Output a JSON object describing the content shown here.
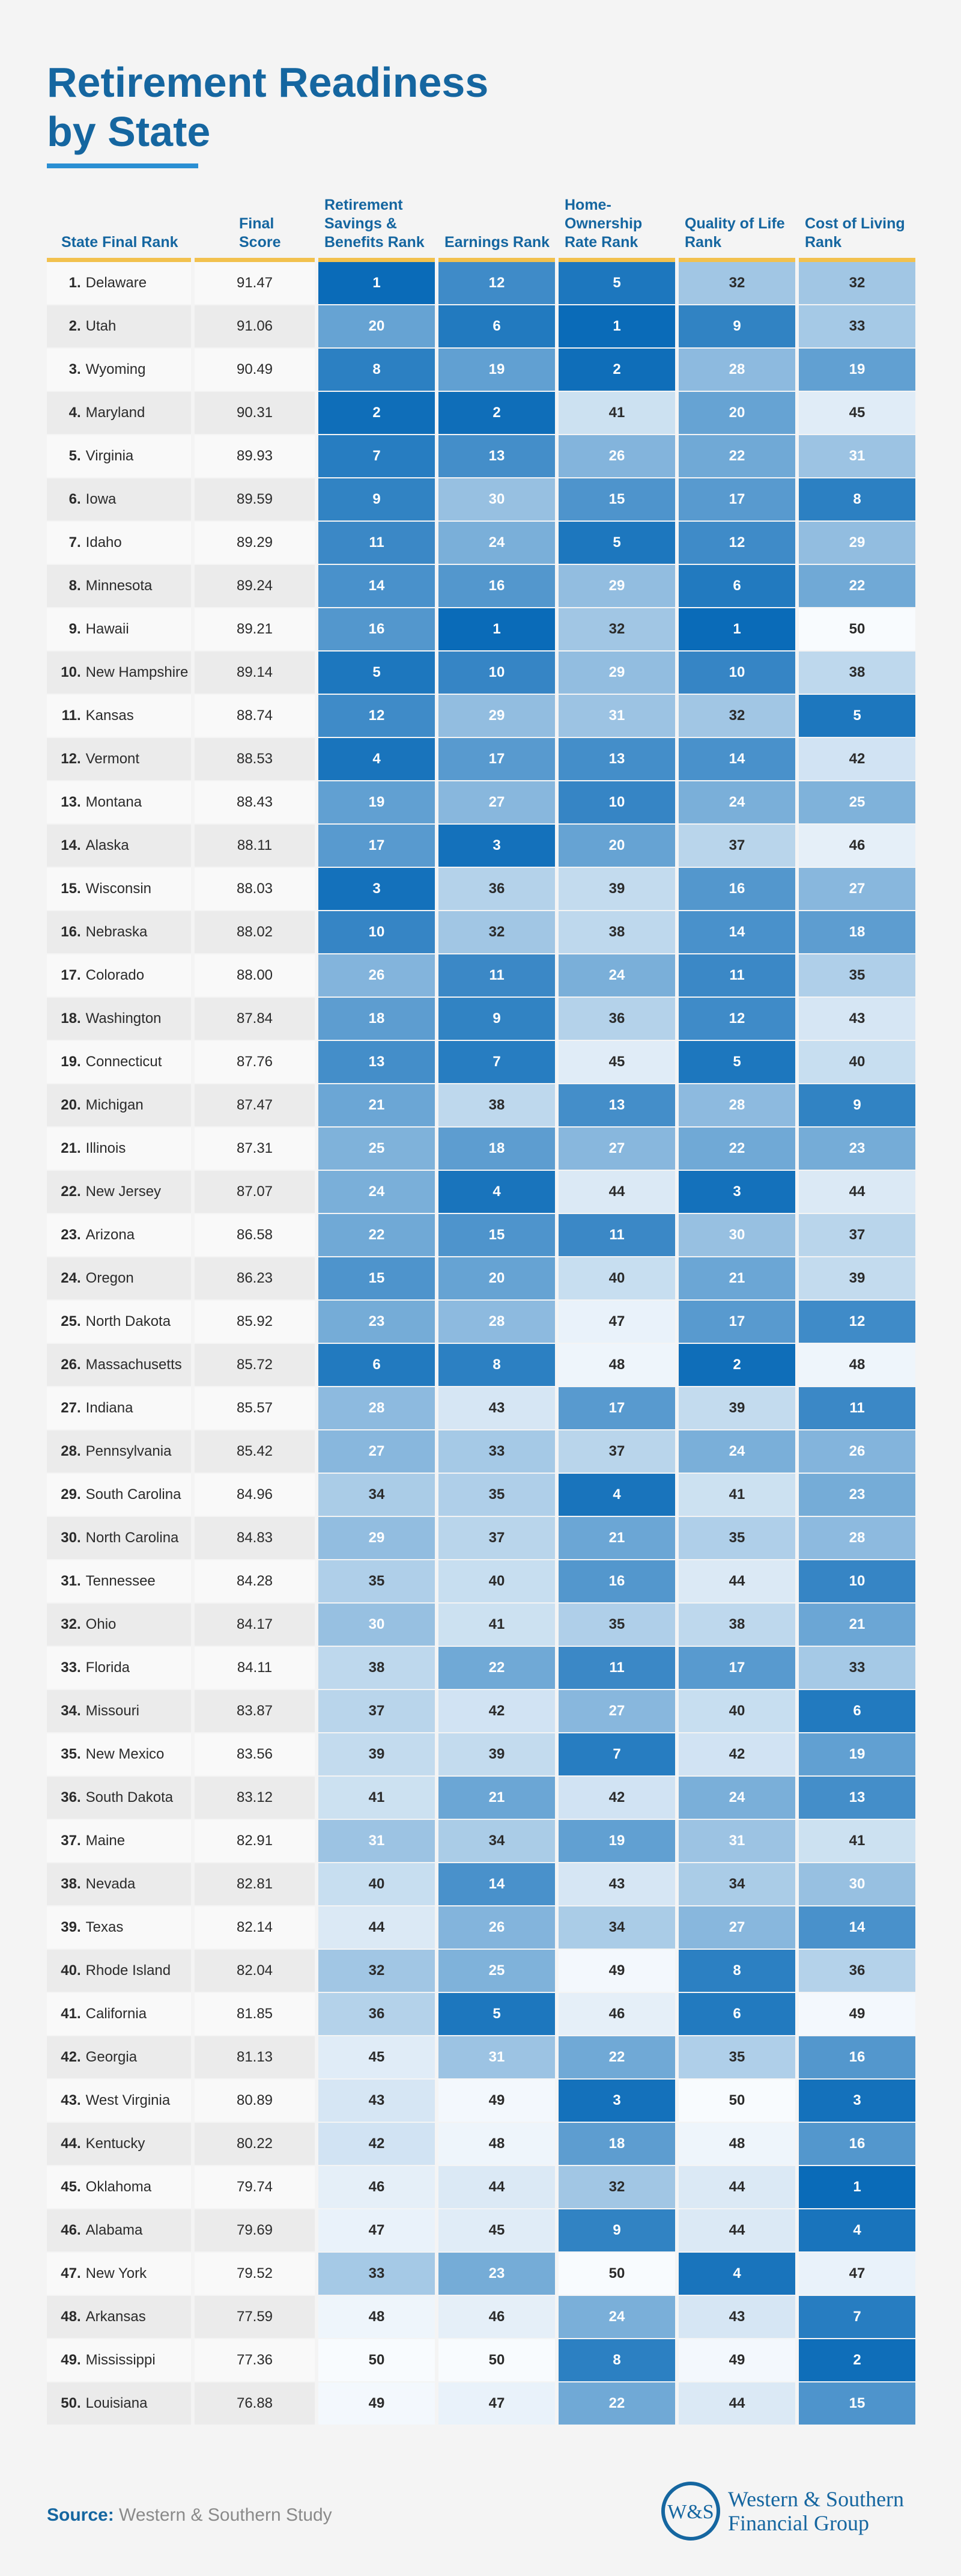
{
  "title_line1": "Retirement Readiness",
  "title_line2": "by State",
  "footer": {
    "source_label": "Source:",
    "source_text": "Western & Southern Study"
  },
  "logo": {
    "line1": "Western & Southern",
    "line2": "Financial Group",
    "mark": "W&S"
  },
  "colors": {
    "title": "#1566a0",
    "header_rule": "#f2c14e",
    "heat_dark": "#0a6bb8",
    "heat_light": "#f8fbfe"
  },
  "chart_data": {
    "type": "table",
    "columns": [
      "State Final Rank",
      "Final Score",
      "Retirement Savings & Benefits Rank",
      "Earnings Rank",
      "Home-Ownership Rate Rank",
      "Quality of Life Rank",
      "Cost of Living Rank"
    ],
    "rows": [
      [
        1,
        "Delaware",
        "91.47",
        1,
        12,
        5,
        32,
        32
      ],
      [
        2,
        "Utah",
        "91.06",
        20,
        6,
        1,
        9,
        33
      ],
      [
        3,
        "Wyoming",
        "90.49",
        8,
        19,
        2,
        28,
        19
      ],
      [
        4,
        "Maryland",
        "90.31",
        2,
        2,
        41,
        20,
        45
      ],
      [
        5,
        "Virginia",
        "89.93",
        7,
        13,
        26,
        22,
        31
      ],
      [
        6,
        "Iowa",
        "89.59",
        9,
        30,
        15,
        17,
        8
      ],
      [
        7,
        "Idaho",
        "89.29",
        11,
        24,
        5,
        12,
        29
      ],
      [
        8,
        "Minnesota",
        "89.24",
        14,
        16,
        29,
        6,
        22
      ],
      [
        9,
        "Hawaii",
        "89.21",
        16,
        1,
        32,
        1,
        50
      ],
      [
        10,
        "New Hampshire",
        "89.14",
        5,
        10,
        29,
        10,
        38
      ],
      [
        11,
        "Kansas",
        "88.74",
        12,
        29,
        31,
        32,
        5
      ],
      [
        12,
        "Vermont",
        "88.53",
        4,
        17,
        13,
        14,
        42
      ],
      [
        13,
        "Montana",
        "88.43",
        19,
        27,
        10,
        24,
        25
      ],
      [
        14,
        "Alaska",
        "88.11",
        17,
        3,
        20,
        37,
        46
      ],
      [
        15,
        "Wisconsin",
        "88.03",
        3,
        36,
        39,
        16,
        27
      ],
      [
        16,
        "Nebraska",
        "88.02",
        10,
        32,
        38,
        14,
        18
      ],
      [
        17,
        "Colorado",
        "88.00",
        26,
        11,
        24,
        11,
        35
      ],
      [
        18,
        "Washington",
        "87.84",
        18,
        9,
        36,
        12,
        43
      ],
      [
        19,
        "Connecticut",
        "87.76",
        13,
        7,
        45,
        5,
        40
      ],
      [
        20,
        "Michigan",
        "87.47",
        21,
        38,
        13,
        28,
        9
      ],
      [
        21,
        "Illinois",
        "87.31",
        25,
        18,
        27,
        22,
        23
      ],
      [
        22,
        "New Jersey",
        "87.07",
        24,
        4,
        44,
        3,
        44
      ],
      [
        23,
        "Arizona",
        "86.58",
        22,
        15,
        11,
        30,
        37
      ],
      [
        24,
        "Oregon",
        "86.23",
        15,
        20,
        40,
        21,
        39
      ],
      [
        25,
        "North Dakota",
        "85.92",
        23,
        28,
        47,
        17,
        12
      ],
      [
        26,
        "Massachusetts",
        "85.72",
        6,
        8,
        48,
        2,
        48
      ],
      [
        27,
        "Indiana",
        "85.57",
        28,
        43,
        17,
        39,
        11
      ],
      [
        28,
        "Pennsylvania",
        "85.42",
        27,
        33,
        37,
        24,
        26
      ],
      [
        29,
        "South Carolina",
        "84.96",
        34,
        35,
        4,
        41,
        23
      ],
      [
        30,
        "North Carolina",
        "84.83",
        29,
        37,
        21,
        35,
        28
      ],
      [
        31,
        "Tennessee",
        "84.28",
        35,
        40,
        16,
        44,
        10
      ],
      [
        32,
        "Ohio",
        "84.17",
        30,
        41,
        35,
        38,
        21
      ],
      [
        33,
        "Florida",
        "84.11",
        38,
        22,
        11,
        17,
        33
      ],
      [
        34,
        "Missouri",
        "83.87",
        37,
        42,
        27,
        40,
        6
      ],
      [
        35,
        "New Mexico",
        "83.56",
        39,
        39,
        7,
        42,
        19
      ],
      [
        36,
        "South Dakota",
        "83.12",
        41,
        21,
        42,
        24,
        13
      ],
      [
        37,
        "Maine",
        "82.91",
        31,
        34,
        19,
        31,
        41
      ],
      [
        38,
        "Nevada",
        "82.81",
        40,
        14,
        43,
        34,
        30
      ],
      [
        39,
        "Texas",
        "82.14",
        44,
        26,
        34,
        27,
        14
      ],
      [
        40,
        "Rhode Island",
        "82.04",
        32,
        25,
        49,
        8,
        36
      ],
      [
        41,
        "California",
        "81.85",
        36,
        5,
        46,
        6,
        49
      ],
      [
        42,
        "Georgia",
        "81.13",
        45,
        31,
        22,
        35,
        16
      ],
      [
        43,
        "West Virginia",
        "80.89",
        43,
        49,
        3,
        50,
        3
      ],
      [
        44,
        "Kentucky",
        "80.22",
        42,
        48,
        18,
        48,
        16
      ],
      [
        45,
        "Oklahoma",
        "79.74",
        46,
        44,
        32,
        44,
        1
      ],
      [
        46,
        "Alabama",
        "79.69",
        47,
        45,
        9,
        44,
        4
      ],
      [
        47,
        "New York",
        "79.52",
        33,
        23,
        50,
        4,
        47
      ],
      [
        48,
        "Arkansas",
        "77.59",
        48,
        46,
        24,
        43,
        7
      ],
      [
        49,
        "Mississippi",
        "77.36",
        50,
        50,
        8,
        49,
        2
      ],
      [
        50,
        "Louisiana",
        "76.88",
        49,
        47,
        22,
        44,
        15
      ]
    ]
  }
}
